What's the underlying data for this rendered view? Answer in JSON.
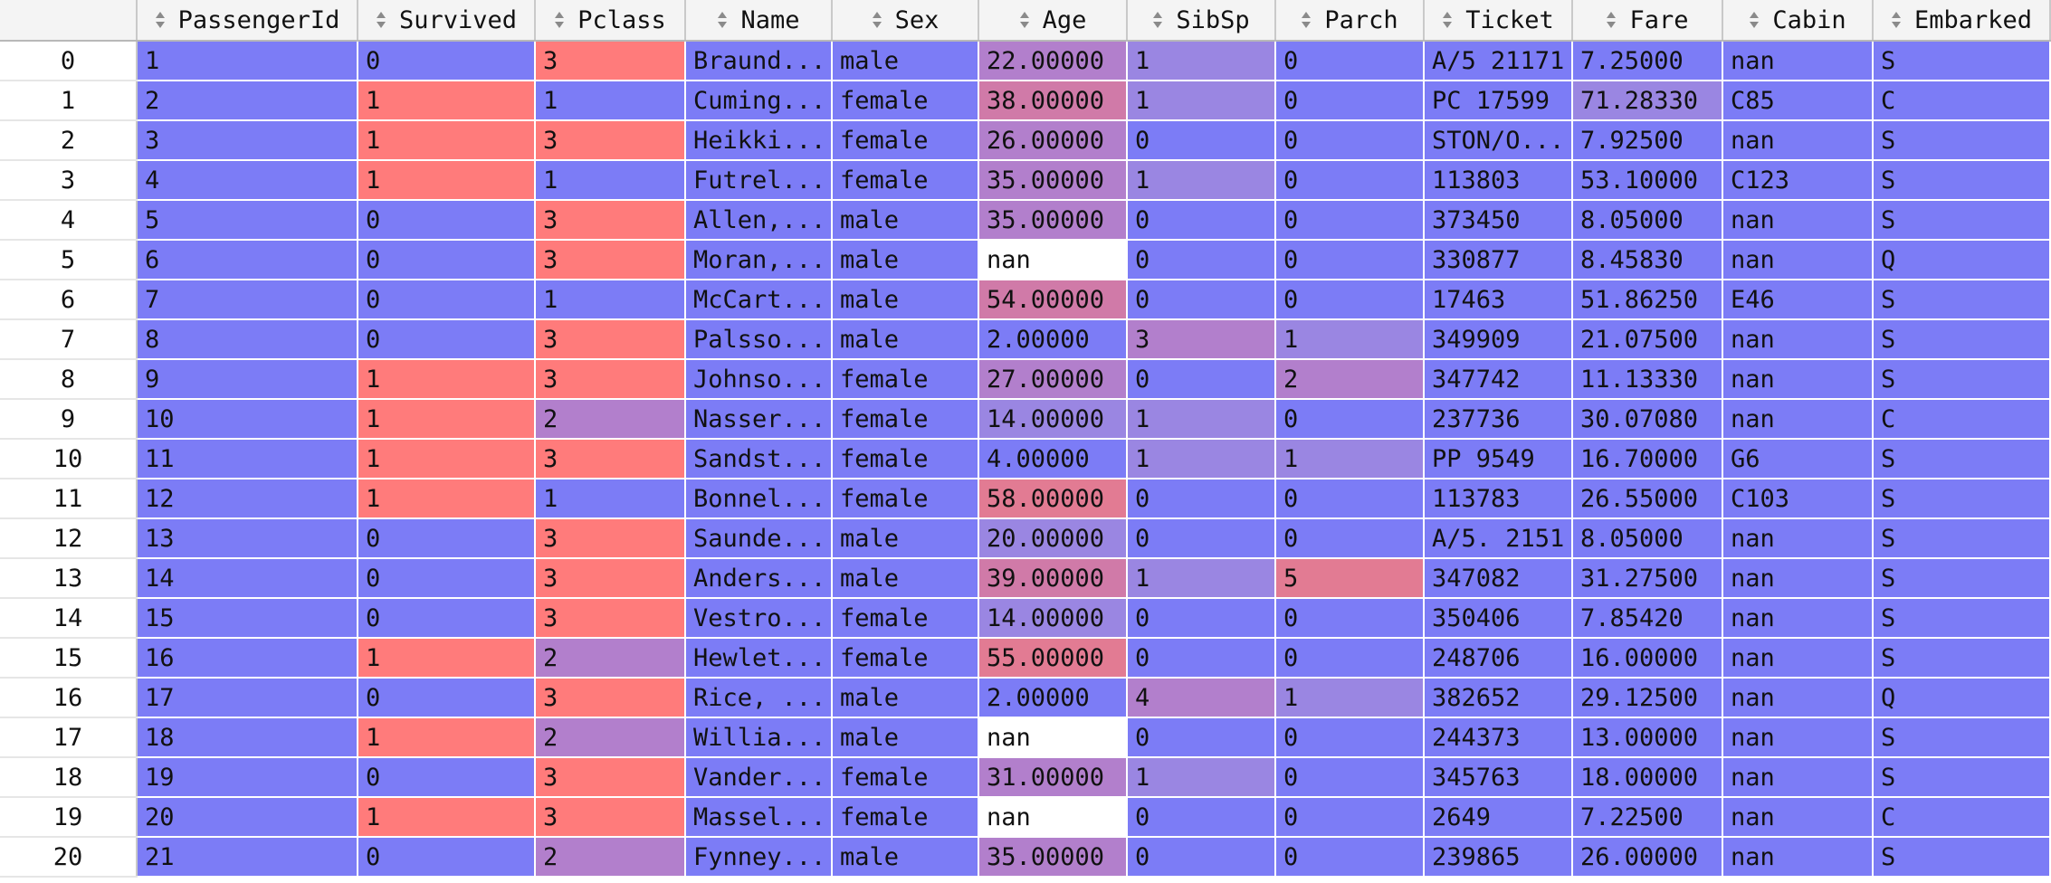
{
  "colors": {
    "blue": "#7c7cf6",
    "red": "#ff7b7b",
    "mid_low": "#9a86e2",
    "mid": "#b27fcc",
    "mid_high": "#d07aa8",
    "high": "#e27b93",
    "white": "#ffffff"
  },
  "columns": [
    {
      "label": "",
      "sortable": false
    },
    {
      "label": "PassengerId",
      "sortable": true
    },
    {
      "label": "Survived",
      "sortable": true
    },
    {
      "label": "Pclass",
      "sortable": true
    },
    {
      "label": "Name",
      "sortable": true
    },
    {
      "label": "Sex",
      "sortable": true
    },
    {
      "label": "Age",
      "sortable": true
    },
    {
      "label": "SibSp",
      "sortable": true
    },
    {
      "label": "Parch",
      "sortable": true
    },
    {
      "label": "Ticket",
      "sortable": true
    },
    {
      "label": "Fare",
      "sortable": true
    },
    {
      "label": "Cabin",
      "sortable": true
    },
    {
      "label": "Embarked",
      "sortable": true
    }
  ],
  "rows": [
    {
      "index": "0",
      "cells": [
        "1",
        "0",
        "3",
        "Braund...",
        "male",
        "22.00000",
        "1",
        "0",
        "A/5 21171",
        "7.25000",
        "nan",
        "S"
      ],
      "colors": [
        "blue",
        "blue",
        "red",
        "blue",
        "blue",
        "mid",
        "mid_low",
        "blue",
        "blue",
        "blue",
        "blue",
        "blue"
      ]
    },
    {
      "index": "1",
      "cells": [
        "2",
        "1",
        "1",
        "Cuming...",
        "female",
        "38.00000",
        "1",
        "0",
        "PC 17599",
        "71.28330",
        "C85",
        "C"
      ],
      "colors": [
        "blue",
        "red",
        "blue",
        "blue",
        "blue",
        "mid_high",
        "mid_low",
        "blue",
        "blue",
        "mid_low",
        "blue",
        "blue"
      ]
    },
    {
      "index": "2",
      "cells": [
        "3",
        "1",
        "3",
        "Heikki...",
        "female",
        "26.00000",
        "0",
        "0",
        "STON/O...",
        "7.92500",
        "nan",
        "S"
      ],
      "colors": [
        "blue",
        "red",
        "red",
        "blue",
        "blue",
        "mid",
        "blue",
        "blue",
        "blue",
        "blue",
        "blue",
        "blue"
      ]
    },
    {
      "index": "3",
      "cells": [
        "4",
        "1",
        "1",
        "Futrel...",
        "female",
        "35.00000",
        "1",
        "0",
        "113803",
        "53.10000",
        "C123",
        "S"
      ],
      "colors": [
        "blue",
        "red",
        "blue",
        "blue",
        "blue",
        "mid",
        "mid_low",
        "blue",
        "blue",
        "blue",
        "blue",
        "blue"
      ]
    },
    {
      "index": "4",
      "cells": [
        "5",
        "0",
        "3",
        "Allen,...",
        "male",
        "35.00000",
        "0",
        "0",
        "373450",
        "8.05000",
        "nan",
        "S"
      ],
      "colors": [
        "blue",
        "blue",
        "red",
        "blue",
        "blue",
        "mid",
        "blue",
        "blue",
        "blue",
        "blue",
        "blue",
        "blue"
      ]
    },
    {
      "index": "5",
      "cells": [
        "6",
        "0",
        "3",
        "Moran,...",
        "male",
        "nan",
        "0",
        "0",
        "330877",
        "8.45830",
        "nan",
        "Q"
      ],
      "colors": [
        "blue",
        "blue",
        "red",
        "blue",
        "blue",
        "white",
        "blue",
        "blue",
        "blue",
        "blue",
        "blue",
        "blue"
      ]
    },
    {
      "index": "6",
      "cells": [
        "7",
        "0",
        "1",
        "McCart...",
        "male",
        "54.00000",
        "0",
        "0",
        "17463",
        "51.86250",
        "E46",
        "S"
      ],
      "colors": [
        "blue",
        "blue",
        "blue",
        "blue",
        "blue",
        "mid_high",
        "blue",
        "blue",
        "blue",
        "blue",
        "blue",
        "blue"
      ]
    },
    {
      "index": "7",
      "cells": [
        "8",
        "0",
        "3",
        "Palsso...",
        "male",
        "2.00000",
        "3",
        "1",
        "349909",
        "21.07500",
        "nan",
        "S"
      ],
      "colors": [
        "blue",
        "blue",
        "red",
        "blue",
        "blue",
        "blue",
        "mid",
        "mid_low",
        "blue",
        "blue",
        "blue",
        "blue"
      ]
    },
    {
      "index": "8",
      "cells": [
        "9",
        "1",
        "3",
        "Johnso...",
        "female",
        "27.00000",
        "0",
        "2",
        "347742",
        "11.13330",
        "nan",
        "S"
      ],
      "colors": [
        "blue",
        "red",
        "red",
        "blue",
        "blue",
        "mid",
        "blue",
        "mid",
        "blue",
        "blue",
        "blue",
        "blue"
      ]
    },
    {
      "index": "9",
      "cells": [
        "10",
        "1",
        "2",
        "Nasser...",
        "female",
        "14.00000",
        "1",
        "0",
        "237736",
        "30.07080",
        "nan",
        "C"
      ],
      "colors": [
        "blue",
        "red",
        "mid",
        "blue",
        "blue",
        "mid_low",
        "mid_low",
        "blue",
        "blue",
        "blue",
        "blue",
        "blue"
      ]
    },
    {
      "index": "10",
      "cells": [
        "11",
        "1",
        "3",
        "Sandst...",
        "female",
        "4.00000",
        "1",
        "1",
        "PP 9549",
        "16.70000",
        "G6",
        "S"
      ],
      "colors": [
        "blue",
        "red",
        "red",
        "blue",
        "blue",
        "blue",
        "mid_low",
        "mid_low",
        "blue",
        "blue",
        "blue",
        "blue"
      ]
    },
    {
      "index": "11",
      "cells": [
        "12",
        "1",
        "1",
        "Bonnel...",
        "female",
        "58.00000",
        "0",
        "0",
        "113783",
        "26.55000",
        "C103",
        "S"
      ],
      "colors": [
        "blue",
        "red",
        "blue",
        "blue",
        "blue",
        "high",
        "blue",
        "blue",
        "blue",
        "blue",
        "blue",
        "blue"
      ]
    },
    {
      "index": "12",
      "cells": [
        "13",
        "0",
        "3",
        "Saunde...",
        "male",
        "20.00000",
        "0",
        "0",
        "A/5. 2151",
        "8.05000",
        "nan",
        "S"
      ],
      "colors": [
        "blue",
        "blue",
        "red",
        "blue",
        "blue",
        "mid_low",
        "blue",
        "blue",
        "blue",
        "blue",
        "blue",
        "blue"
      ]
    },
    {
      "index": "13",
      "cells": [
        "14",
        "0",
        "3",
        "Anders...",
        "male",
        "39.00000",
        "1",
        "5",
        "347082",
        "31.27500",
        "nan",
        "S"
      ],
      "colors": [
        "blue",
        "blue",
        "red",
        "blue",
        "blue",
        "mid_high",
        "mid_low",
        "high",
        "blue",
        "blue",
        "blue",
        "blue"
      ]
    },
    {
      "index": "14",
      "cells": [
        "15",
        "0",
        "3",
        "Vestro...",
        "female",
        "14.00000",
        "0",
        "0",
        "350406",
        "7.85420",
        "nan",
        "S"
      ],
      "colors": [
        "blue",
        "blue",
        "red",
        "blue",
        "blue",
        "mid_low",
        "blue",
        "blue",
        "blue",
        "blue",
        "blue",
        "blue"
      ]
    },
    {
      "index": "15",
      "cells": [
        "16",
        "1",
        "2",
        "Hewlet...",
        "female",
        "55.00000",
        "0",
        "0",
        "248706",
        "16.00000",
        "nan",
        "S"
      ],
      "colors": [
        "blue",
        "red",
        "mid",
        "blue",
        "blue",
        "high",
        "blue",
        "blue",
        "blue",
        "blue",
        "blue",
        "blue"
      ]
    },
    {
      "index": "16",
      "cells": [
        "17",
        "0",
        "3",
        "Rice, ...",
        "male",
        "2.00000",
        "4",
        "1",
        "382652",
        "29.12500",
        "nan",
        "Q"
      ],
      "colors": [
        "blue",
        "blue",
        "red",
        "blue",
        "blue",
        "blue",
        "mid",
        "mid_low",
        "blue",
        "blue",
        "blue",
        "blue"
      ]
    },
    {
      "index": "17",
      "cells": [
        "18",
        "1",
        "2",
        "Willia...",
        "male",
        "nan",
        "0",
        "0",
        "244373",
        "13.00000",
        "nan",
        "S"
      ],
      "colors": [
        "blue",
        "red",
        "mid",
        "blue",
        "blue",
        "white",
        "blue",
        "blue",
        "blue",
        "blue",
        "blue",
        "blue"
      ]
    },
    {
      "index": "18",
      "cells": [
        "19",
        "0",
        "3",
        "Vander...",
        "female",
        "31.00000",
        "1",
        "0",
        "345763",
        "18.00000",
        "nan",
        "S"
      ],
      "colors": [
        "blue",
        "blue",
        "red",
        "blue",
        "blue",
        "mid",
        "mid_low",
        "blue",
        "blue",
        "blue",
        "blue",
        "blue"
      ]
    },
    {
      "index": "19",
      "cells": [
        "20",
        "1",
        "3",
        "Massel...",
        "female",
        "nan",
        "0",
        "0",
        "2649",
        "7.22500",
        "nan",
        "C"
      ],
      "colors": [
        "blue",
        "red",
        "red",
        "blue",
        "blue",
        "white",
        "blue",
        "blue",
        "blue",
        "blue",
        "blue",
        "blue"
      ]
    },
    {
      "index": "20",
      "cells": [
        "21",
        "0",
        "2",
        "Fynney...",
        "male",
        "35.00000",
        "0",
        "0",
        "239865",
        "26.00000",
        "nan",
        "S"
      ],
      "colors": [
        "blue",
        "blue",
        "mid",
        "blue",
        "blue",
        "mid",
        "blue",
        "blue",
        "blue",
        "blue",
        "blue",
        "blue"
      ]
    }
  ]
}
